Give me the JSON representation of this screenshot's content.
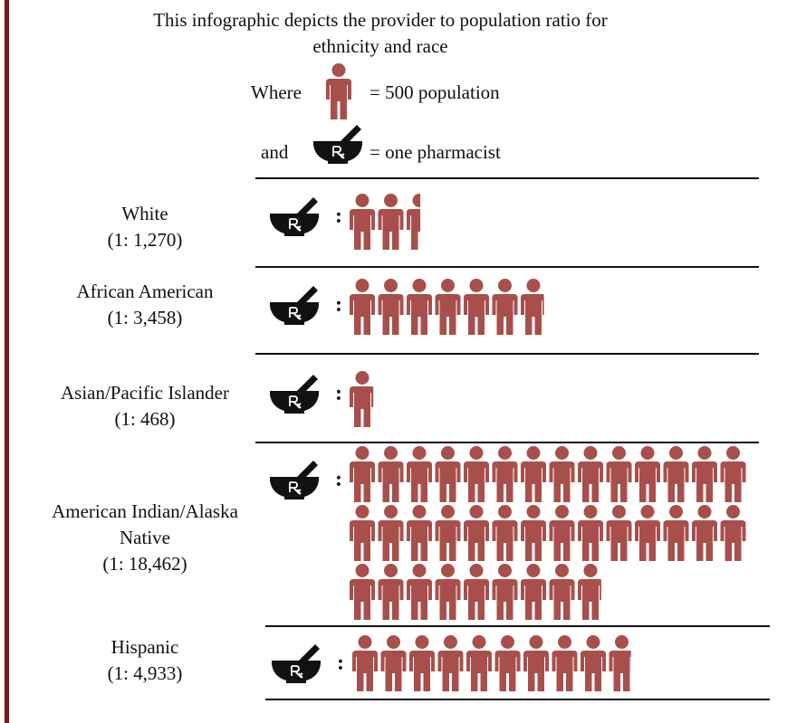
{
  "title": "This infographic depicts the provider to population ratio for ethnicity and race",
  "legend": {
    "where": "Where",
    "person_label": "= 500 population",
    "people_per_icon": 500,
    "and": "and",
    "pharmacist_label": "= one pharmacist"
  },
  "separator": ":",
  "rows": [
    {
      "name": "White",
      "ratio": 1270,
      "ratio_label": "(1: 1,270)"
    },
    {
      "name": "African American",
      "ratio": 3458,
      "ratio_label": "(1: 3,458)"
    },
    {
      "name": "Asian/Pacific Islander",
      "ratio": 468,
      "ratio_label": "(1: 468)"
    },
    {
      "name": "American Indian/Alaska Native",
      "ratio": 18462,
      "ratio_label": "(1: 18,462)"
    },
    {
      "name": "Hispanic",
      "ratio": 4933,
      "ratio_label": "(1: 4,933)"
    }
  ]
}
